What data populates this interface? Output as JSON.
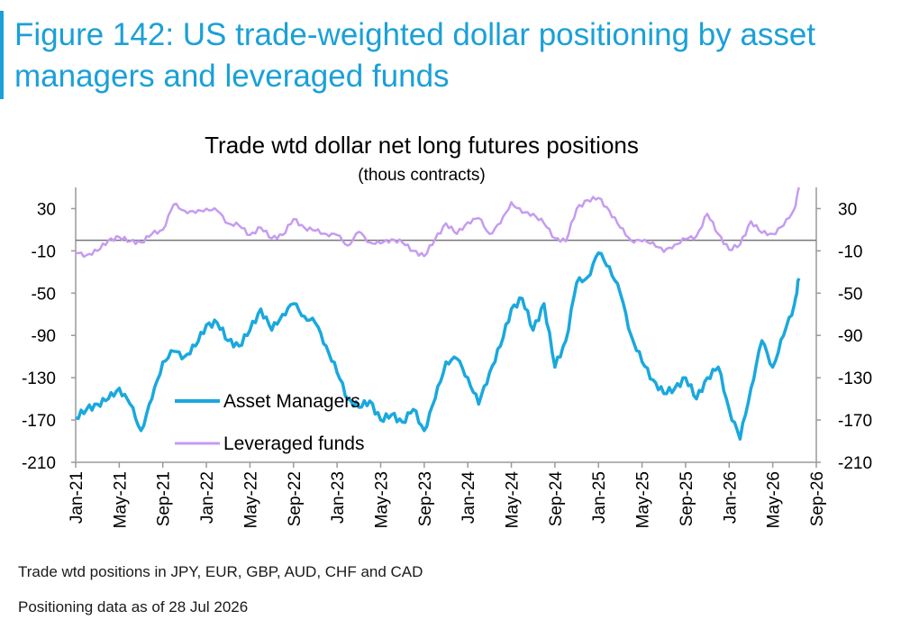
{
  "figure": {
    "title": "Figure 142: US trade-weighted dollar positioning by asset managers and leveraged funds"
  },
  "notes": {
    "line1": "Trade wtd positions in JPY, EUR, GBP, AUD, CHF and CAD",
    "line2": "Positioning data as of 28 Jul 2026"
  },
  "colors": {
    "asset_managers": "#1aa8de",
    "leveraged_funds": "#c59cf0",
    "title_accent": "#1aa0d8",
    "axis": "#9a9a9a"
  },
  "chart_data": {
    "type": "line",
    "title": "Trade wtd dollar net long futures positions",
    "subtitle": "(thous contracts)",
    "xlabel": "",
    "ylabel": "",
    "x_range": [
      "Jan-21",
      "Sep-26"
    ],
    "ylim": [
      -210,
      50
    ],
    "y_ticks": [
      30,
      -10,
      -50,
      -90,
      -130,
      -170,
      -210
    ],
    "x_tick_labels": [
      "Jan-21",
      "May-21",
      "Sep-21",
      "Jan-22",
      "May-22",
      "Sep-22",
      "Jan-23",
      "May-23",
      "Sep-23",
      "Jan-24",
      "May-24",
      "Sep-24",
      "Jan-25",
      "May-25",
      "Sep-25",
      "Jan-26",
      "May-26",
      "Sep-26"
    ],
    "grid": false,
    "legend_position": "bottom-left",
    "secondary_axis_mirrored": true,
    "series": [
      {
        "name": "Asset Managers",
        "points": [
          [
            "Jan-21",
            -168
          ],
          [
            "Feb-21",
            -160
          ],
          [
            "Mar-21",
            -155
          ],
          [
            "Apr-21",
            -150
          ],
          [
            "May-21",
            -140
          ],
          [
            "Jun-21",
            -155
          ],
          [
            "Jul-21",
            -180
          ],
          [
            "Aug-21",
            -150
          ],
          [
            "Sep-21",
            -115
          ],
          [
            "Oct-21",
            -105
          ],
          [
            "Nov-21",
            -110
          ],
          [
            "Dec-21",
            -100
          ],
          [
            "Jan-22",
            -80
          ],
          [
            "Feb-22",
            -78
          ],
          [
            "Mar-22",
            -95
          ],
          [
            "Apr-22",
            -100
          ],
          [
            "May-22",
            -85
          ],
          [
            "Jun-22",
            -65
          ],
          [
            "Jul-22",
            -85
          ],
          [
            "Aug-22",
            -70
          ],
          [
            "Sep-22",
            -60
          ],
          [
            "Oct-22",
            -72
          ],
          [
            "Nov-22",
            -78
          ],
          [
            "Dec-22",
            -100
          ],
          [
            "Jan-23",
            -125
          ],
          [
            "Feb-23",
            -150
          ],
          [
            "Mar-23",
            -158
          ],
          [
            "Apr-23",
            -152
          ],
          [
            "May-23",
            -170
          ],
          [
            "Jun-23",
            -165
          ],
          [
            "Jul-23",
            -172
          ],
          [
            "Aug-23",
            -160
          ],
          [
            "Sep-23",
            -180
          ],
          [
            "Oct-23",
            -150
          ],
          [
            "Nov-23",
            -115
          ],
          [
            "Dec-23",
            -112
          ],
          [
            "Jan-24",
            -130
          ],
          [
            "Feb-24",
            -155
          ],
          [
            "Mar-24",
            -125
          ],
          [
            "Apr-24",
            -100
          ],
          [
            "May-24",
            -65
          ],
          [
            "Jun-24",
            -55
          ],
          [
            "Jul-24",
            -85
          ],
          [
            "Aug-24",
            -60
          ],
          [
            "Sep-24",
            -120
          ],
          [
            "Oct-24",
            -95
          ],
          [
            "Nov-24",
            -40
          ],
          [
            "Dec-24",
            -35
          ],
          [
            "Jan-25",
            -12
          ],
          [
            "Feb-25",
            -25
          ],
          [
            "Mar-25",
            -50
          ],
          [
            "Apr-25",
            -90
          ],
          [
            "May-25",
            -115
          ],
          [
            "Jun-25",
            -132
          ],
          [
            "Jul-25",
            -145
          ],
          [
            "Aug-25",
            -140
          ],
          [
            "Sep-25",
            -130
          ],
          [
            "Oct-25",
            -150
          ],
          [
            "Nov-25",
            -130
          ],
          [
            "Dec-25",
            -120
          ],
          [
            "Jan-26",
            -160
          ],
          [
            "Feb-26",
            -188
          ],
          [
            "Mar-26",
            -140
          ],
          [
            "Apr-26",
            -95
          ],
          [
            "May-26",
            -120
          ],
          [
            "Jun-26",
            -90
          ],
          [
            "Jul-26",
            -60
          ],
          [
            "Jul-26",
            -36
          ]
        ]
      },
      {
        "name": "Leveraged funds",
        "points": [
          [
            "Jan-21",
            -12
          ],
          [
            "Feb-21",
            -14
          ],
          [
            "Mar-21",
            -10
          ],
          [
            "Apr-21",
            0
          ],
          [
            "May-21",
            3
          ],
          [
            "Jun-21",
            -1
          ],
          [
            "Jul-21",
            -2
          ],
          [
            "Aug-21",
            6
          ],
          [
            "Sep-21",
            10
          ],
          [
            "Oct-21",
            34
          ],
          [
            "Nov-21",
            28
          ],
          [
            "Dec-21",
            26
          ],
          [
            "Jan-22",
            30
          ],
          [
            "Feb-22",
            28
          ],
          [
            "Mar-22",
            16
          ],
          [
            "Apr-22",
            14
          ],
          [
            "May-22",
            5
          ],
          [
            "Jun-22",
            12
          ],
          [
            "Jul-22",
            2
          ],
          [
            "Aug-22",
            5
          ],
          [
            "Sep-22",
            20
          ],
          [
            "Oct-22",
            12
          ],
          [
            "Nov-22",
            9
          ],
          [
            "Dec-22",
            6
          ],
          [
            "Jan-23",
            5
          ],
          [
            "Feb-23",
            -5
          ],
          [
            "Mar-23",
            8
          ],
          [
            "Apr-23",
            -2
          ],
          [
            "May-23",
            -3
          ],
          [
            "Jun-23",
            1
          ],
          [
            "Jul-23",
            -2
          ],
          [
            "Aug-23",
            -10
          ],
          [
            "Sep-23",
            -15
          ],
          [
            "Oct-23",
            1
          ],
          [
            "Nov-23",
            16
          ],
          [
            "Dec-23",
            6
          ],
          [
            "Jan-24",
            17
          ],
          [
            "Feb-24",
            21
          ],
          [
            "Mar-24",
            6
          ],
          [
            "Apr-24",
            16
          ],
          [
            "May-24",
            36
          ],
          [
            "Jun-24",
            26
          ],
          [
            "Jul-24",
            25
          ],
          [
            "Aug-24",
            16
          ],
          [
            "Sep-24",
            2
          ],
          [
            "Oct-24",
            -1
          ],
          [
            "Nov-24",
            30
          ],
          [
            "Dec-24",
            38
          ],
          [
            "Jan-25",
            40
          ],
          [
            "Feb-25",
            28
          ],
          [
            "Mar-25",
            12
          ],
          [
            "Apr-25",
            0
          ],
          [
            "May-25",
            -1
          ],
          [
            "Jun-25",
            -2
          ],
          [
            "Jul-25",
            -11
          ],
          [
            "Aug-25",
            -4
          ],
          [
            "Sep-25",
            1
          ],
          [
            "Oct-25",
            4
          ],
          [
            "Nov-25",
            25
          ],
          [
            "Dec-25",
            6
          ],
          [
            "Jan-26",
            -9
          ],
          [
            "Feb-26",
            -4
          ],
          [
            "Mar-26",
            18
          ],
          [
            "Apr-26",
            7
          ],
          [
            "May-26",
            6
          ],
          [
            "Jun-26",
            14
          ],
          [
            "Jul-26",
            30
          ],
          [
            "Jul-26",
            50
          ]
        ]
      }
    ]
  }
}
